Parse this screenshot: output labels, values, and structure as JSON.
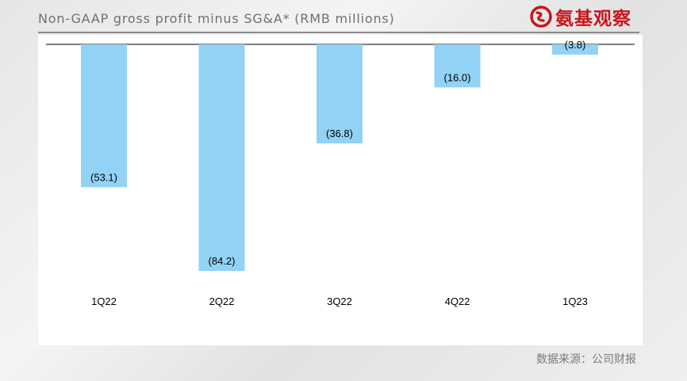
{
  "header": {
    "title": "Non-GAAP gross profit minus SG&A* (RMB millions)",
    "logo_text": "氨基观察",
    "logo_color": "#c8161d"
  },
  "source_note": "数据来源：公司财报",
  "chart_data": {
    "type": "bar",
    "title": "Non-GAAP gross profit minus SG&A* (RMB millions)",
    "xlabel": "",
    "ylabel": "",
    "categories": [
      "1Q22",
      "2Q22",
      "3Q22",
      "4Q22",
      "1Q23"
    ],
    "values": [
      -53.1,
      -84.2,
      -36.8,
      -16.0,
      -3.8
    ],
    "data_labels": [
      "(53.1)",
      "(84.2)",
      "(36.8)",
      "(16.0)",
      "(3.8)"
    ],
    "ylim": [
      -84.2,
      0
    ],
    "bar_color": "#92d2f5",
    "grid": false,
    "legend": "none"
  }
}
